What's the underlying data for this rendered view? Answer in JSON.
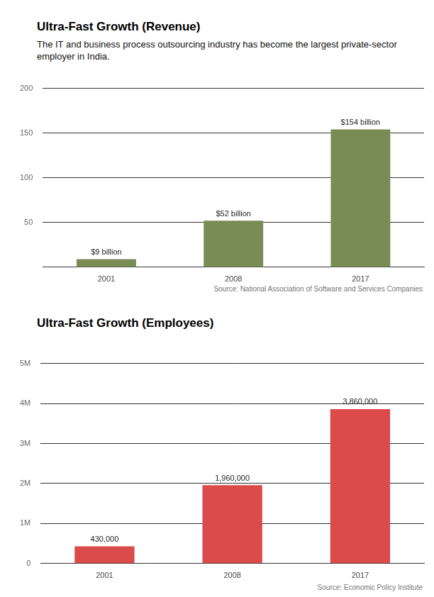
{
  "chart_data": [
    {
      "type": "bar",
      "title": "Ultra-Fast Growth (Revenue)",
      "subtitle": "The IT and business process outsourcing industry has become the largest private-sector employer in India.",
      "source": "Source: National Association of Software and Services Companies",
      "categories": [
        "2001",
        "2008",
        "2017"
      ],
      "values": [
        9,
        52,
        154
      ],
      "value_labels": [
        "$9 billion",
        "$52 billion",
        "$154 billion"
      ],
      "data_labels": true,
      "color": "#7a8c56",
      "ylim": [
        0,
        200
      ],
      "yticks": [
        50,
        100,
        150,
        200
      ],
      "grid": true
    },
    {
      "type": "bar",
      "title": "Ultra-Fast Growth (Employees)",
      "source": "Source: Economic Policy Institute",
      "categories": [
        "2001",
        "2008",
        "2017"
      ],
      "values": [
        430000,
        1960000,
        3860000
      ],
      "value_labels": [
        "430,000",
        "1,960,000",
        "3,860,000"
      ],
      "data_labels": true,
      "color": "#db4b4b",
      "ylim": [
        0,
        5000000
      ],
      "yticks": [
        0,
        {
          "value": 1000000,
          "label": "1M"
        },
        {
          "value": 2000000,
          "label": "2M"
        },
        {
          "value": 3000000,
          "label": "3M"
        },
        {
          "value": 4000000,
          "label": "4M"
        },
        {
          "value": 5000000,
          "label": "5M"
        }
      ],
      "grid": true
    }
  ]
}
